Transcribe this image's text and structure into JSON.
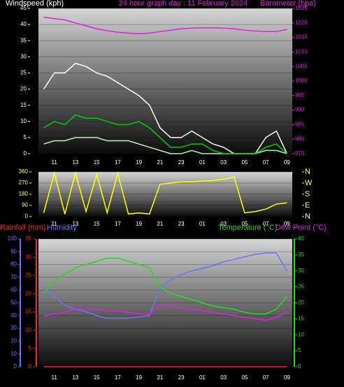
{
  "chart_data": [
    {
      "type": "line",
      "title": "24 hour graph day : 11 February 2024",
      "y_label": "Windspeed (kph)",
      "y2_label": "Barometer (hpa)",
      "categories": [
        null,
        "11",
        null,
        "13",
        null,
        "15",
        null,
        "17",
        null,
        "19",
        null,
        "21",
        null,
        "23",
        null,
        "01",
        null,
        "03",
        null,
        "05",
        null,
        "07",
        null,
        "09"
      ],
      "ylim": [
        0,
        45
      ],
      "yticks": [
        0,
        5,
        10,
        15,
        20,
        25,
        30,
        35,
        40,
        45
      ],
      "y2lim": [
        975,
        1025
      ],
      "y2ticks": [
        975,
        980,
        985,
        990,
        995,
        1000,
        1005,
        1010,
        1015,
        1020,
        1025
      ],
      "grid": true,
      "series": [
        {
          "color": "#ffffff",
          "values": [
            20,
            25,
            25,
            28,
            27,
            25,
            24,
            22,
            20,
            18,
            15,
            8,
            5,
            5,
            7,
            5,
            3,
            2,
            0,
            0,
            0,
            5,
            7,
            0
          ]
        },
        {
          "color": "#b8f0b8",
          "values": [
            3,
            4,
            4,
            5,
            5,
            5,
            4,
            4,
            4,
            3,
            2,
            1,
            0,
            0,
            1,
            0,
            0,
            0,
            0,
            0,
            0,
            1,
            1,
            0
          ]
        },
        {
          "color": "#00cc00",
          "values": [
            8,
            10,
            9,
            12,
            11,
            11,
            10,
            9,
            9,
            10,
            8,
            5,
            2,
            2,
            3,
            3,
            1,
            0,
            0,
            0,
            0,
            2,
            3,
            0
          ]
        },
        {
          "color": "#e020e0",
          "axis": "y2",
          "values": [
            1022,
            1021.5,
            1021,
            1020,
            1019,
            1018,
            1017.3,
            1016.8,
            1016.5,
            1016.3,
            1016.5,
            1017,
            1017.5,
            1018,
            1018.2,
            1018.3,
            1018.3,
            1018.2,
            1018,
            1017.5,
            1017.2,
            1017,
            1017,
            1017.8
          ]
        }
      ]
    },
    {
      "type": "line",
      "categories": [
        null,
        "11",
        null,
        "13",
        null,
        "15",
        null,
        "17",
        null,
        "19",
        null,
        "21",
        null,
        "23",
        null,
        "01",
        null,
        "03",
        null,
        "05",
        null,
        "07",
        null,
        "09"
      ],
      "ylim": [
        0,
        360
      ],
      "yticks": [
        0,
        90,
        180,
        270,
        360
      ],
      "y2lim": [
        0,
        360
      ],
      "y2ticks": [
        {
          "value": 0,
          "label": "N"
        },
        {
          "value": 90,
          "label": "E"
        },
        {
          "value": 180,
          "label": "S"
        },
        {
          "value": 270,
          "label": "W"
        },
        {
          "value": 360,
          "label": "N"
        }
      ],
      "grid": true,
      "series": [
        {
          "color": "#ffff00",
          "values": [
            30,
            350,
            20,
            350,
            40,
            340,
            30,
            350,
            20,
            30,
            20,
            260,
            270,
            280,
            280,
            285,
            290,
            300,
            320,
            30,
            40,
            60,
            100,
            110
          ]
        }
      ]
    },
    {
      "type": "line",
      "categories": [
        null,
        "11",
        null,
        "13",
        null,
        "15",
        null,
        "17",
        null,
        "19",
        null,
        "21",
        null,
        "23",
        null,
        "01",
        null,
        "03",
        null,
        "05",
        null,
        "07",
        null,
        "09"
      ],
      "ylim": [
        0,
        100
      ],
      "yticks": [
        0,
        10,
        20,
        30,
        40,
        50,
        60,
        70,
        80,
        90,
        100
      ],
      "y3lim": [
        0,
        35
      ],
      "y3ticks": [
        0,
        5,
        10,
        15,
        20,
        25,
        30,
        35
      ],
      "y2lim": [
        0,
        40
      ],
      "y2ticks": [
        0,
        5,
        10,
        15,
        20,
        25,
        30,
        35,
        40
      ],
      "grid": true,
      "series": [
        {
          "name": "Rainfall (mm)",
          "color": "#ff2020",
          "axis": "y3",
          "values": [
            0,
            0,
            0,
            0,
            0,
            0,
            0,
            0,
            0,
            0,
            0,
            0,
            0,
            0,
            0,
            0,
            0,
            0,
            0,
            0,
            0,
            0,
            0,
            0
          ]
        },
        {
          "name": "Humidity",
          "color": "#7070ff",
          "values": [
            63,
            55,
            48,
            45,
            43,
            40,
            38,
            38,
            38,
            39,
            40,
            62,
            68,
            72,
            75,
            77,
            79,
            82,
            84,
            86,
            88,
            89,
            89,
            75
          ]
        },
        {
          "name": "Temperature (°C)",
          "color": "#20dd20",
          "axis": "y2",
          "values": [
            23,
            27,
            29,
            31,
            32,
            33,
            34,
            34,
            33,
            32,
            31,
            25,
            23,
            22,
            21,
            20,
            19,
            18.5,
            18,
            17,
            16.5,
            16.5,
            18,
            22
          ]
        },
        {
          "name": "Dew Point (°C)",
          "color": "#e020e0",
          "axis": "y2",
          "values": [
            16,
            16.5,
            17,
            18,
            18,
            18,
            17.5,
            17.5,
            17,
            16.5,
            16.5,
            19.5,
            19,
            18.5,
            18,
            17.5,
            17,
            16.5,
            16,
            15.5,
            15,
            14.5,
            15.5,
            17
          ]
        }
      ]
    }
  ]
}
